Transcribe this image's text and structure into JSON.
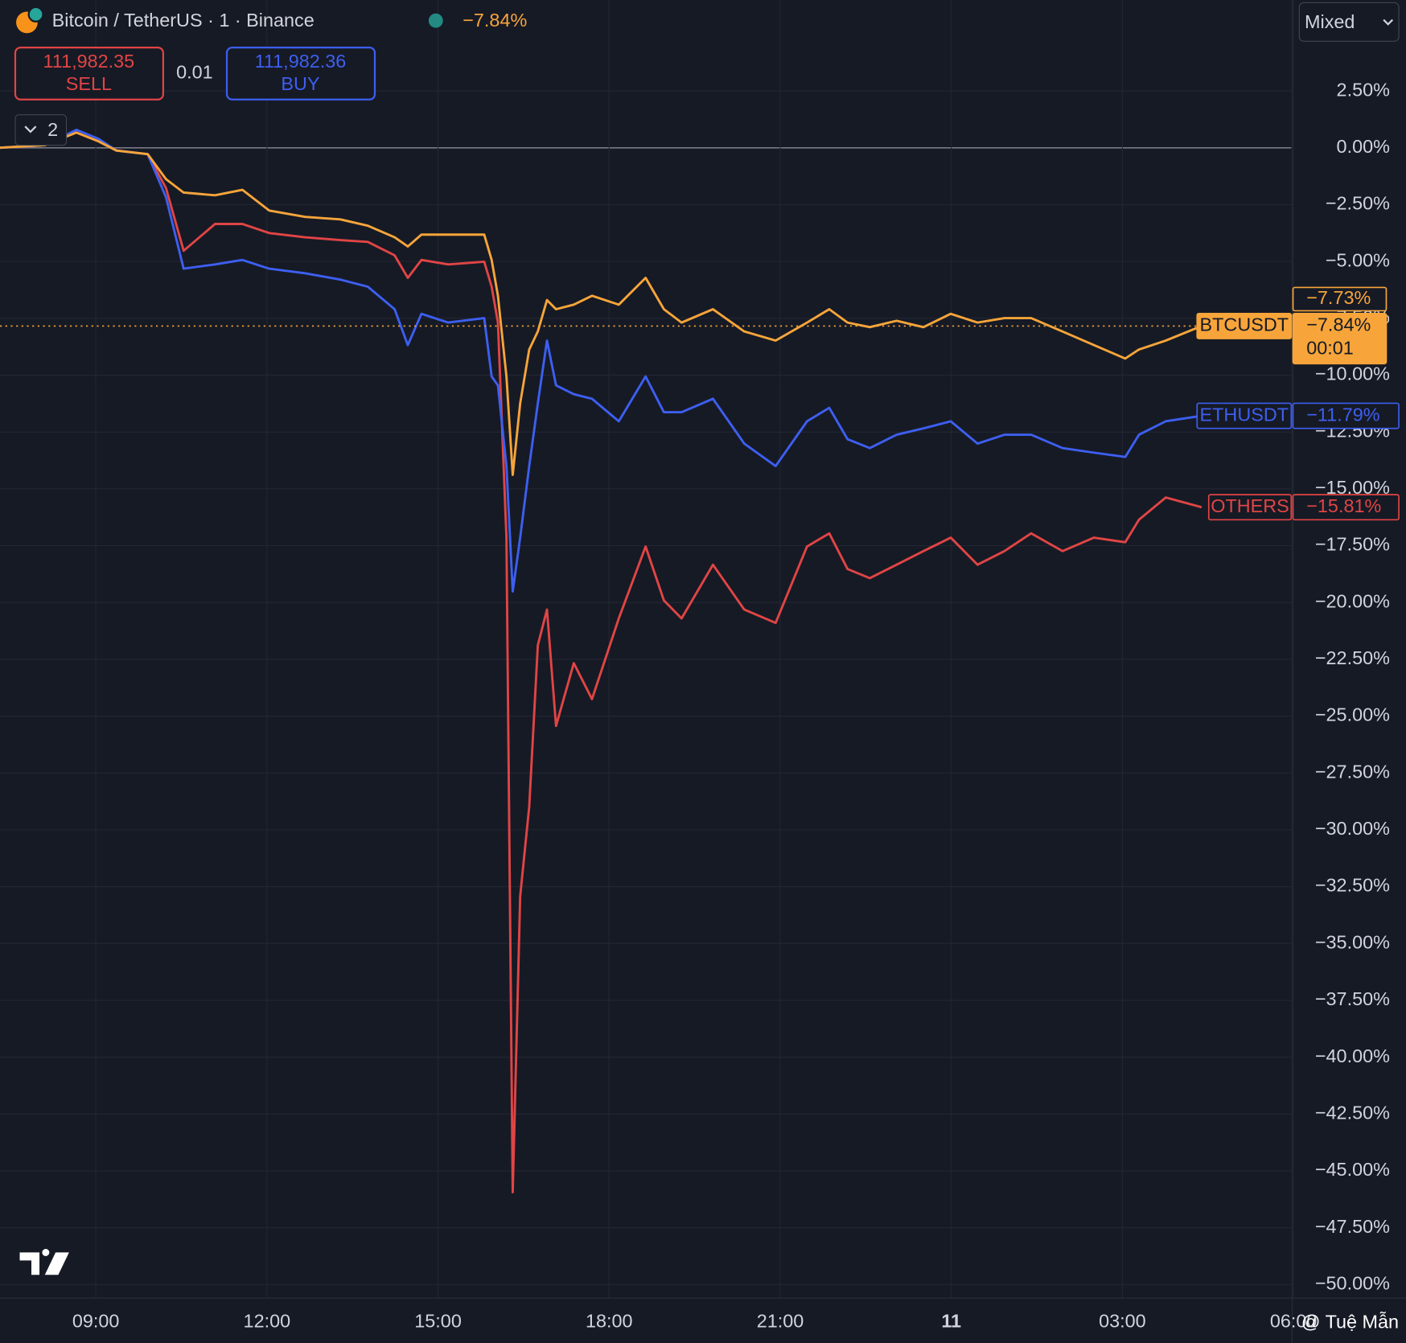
{
  "ui": {
    "title": "Bitcoin / TetherUS · 1 · Binance",
    "change": "−7.84%",
    "sell_price": "111,982.35",
    "sell": "SELL",
    "spread": "0.01",
    "buy_price": "111,982.36",
    "buy": "BUY",
    "indicators": "2",
    "scale_mode": "Mixed",
    "watermark": "@ Tuệ Mẫn"
  },
  "chart_data": {
    "type": "line",
    "x": [
      7.32,
      8.11,
      8.66,
      9.05,
      9.36,
      9.91,
      10.23,
      10.54,
      11.09,
      11.57,
      12.04,
      12.67,
      13.29,
      13.77,
      14.24,
      14.47,
      14.71,
      15.18,
      15.81,
      15.94,
      16.05,
      16.2,
      16.31,
      16.44,
      16.6,
      16.75,
      16.91,
      17.07,
      17.38,
      17.7,
      18.17,
      18.64,
      18.96,
      19.27,
      19.82,
      20.37,
      20.92,
      21.47,
      21.86,
      22.18,
      22.57,
      23.04,
      23.51,
      23.99,
      24.46,
      24.93,
      25.4,
      25.95,
      26.5,
      27.05,
      27.29,
      27.76,
      28.39
    ],
    "series": [
      {
        "name": "BTCUSDT",
        "color": "#f7a53a",
        "last_label": "−7.84%",
        "countdown": "00:01",
        "values": [
          0,
          0.12,
          0.67,
          0.28,
          -0.12,
          -0.28,
          -1.38,
          -1.97,
          -2.09,
          -1.85,
          -2.76,
          -3.04,
          -3.15,
          -3.43,
          -3.94,
          -4.34,
          -3.82,
          -3.82,
          -3.82,
          -4.93,
          -6.51,
          -10.06,
          -14.39,
          -11.24,
          -8.87,
          -8.08,
          -6.7,
          -7.1,
          -6.9,
          -6.51,
          -6.9,
          -5.72,
          -7.1,
          -7.69,
          -7.1,
          -8.08,
          -8.48,
          -7.69,
          -7.1,
          -7.69,
          -7.89,
          -7.61,
          -7.89,
          -7.3,
          -7.69,
          -7.49,
          -7.49,
          -8.08,
          -8.68,
          -9.27,
          -8.87,
          -8.48,
          -7.84
        ]
      },
      {
        "name": "ETHUSDT",
        "color": "#3d5ff0",
        "last_label": "−11.79%",
        "values": [
          0,
          0.12,
          0.79,
          0.39,
          -0.12,
          -0.28,
          -2.17,
          -5.32,
          -5.13,
          -4.93,
          -5.32,
          -5.52,
          -5.8,
          -6.11,
          -7.1,
          -8.68,
          -7.3,
          -7.69,
          -7.49,
          -10.06,
          -10.45,
          -14.0,
          -19.52,
          -17.15,
          -14.0,
          -11.24,
          -8.48,
          -10.45,
          -10.84,
          -11.04,
          -12.03,
          -10.06,
          -11.63,
          -11.63,
          -11.04,
          -13.01,
          -14.0,
          -12.03,
          -11.44,
          -12.82,
          -13.21,
          -12.62,
          -12.34,
          -12.03,
          -13.01,
          -12.62,
          -12.62,
          -13.21,
          -13.41,
          -13.6,
          -12.62,
          -12.03,
          -11.79
        ]
      },
      {
        "name": "OTHERS",
        "color": "#e04545",
        "last_label": "−15.81%",
        "values": [
          0,
          0.12,
          0.67,
          0.28,
          -0.12,
          -0.28,
          -1.77,
          -4.53,
          -3.35,
          -3.35,
          -3.75,
          -3.94,
          -4.06,
          -4.14,
          -4.73,
          -5.72,
          -4.93,
          -5.13,
          -5.01,
          -6.11,
          -7.69,
          -17.15,
          -45.94,
          -32.93,
          -28.98,
          -21.88,
          -20.31,
          -25.43,
          -22.67,
          -24.25,
          -20.7,
          -17.54,
          -19.91,
          -20.7,
          -18.34,
          -20.31,
          -20.9,
          -17.54,
          -16.96,
          -18.53,
          -18.93,
          -18.34,
          -17.74,
          -17.15,
          -18.34,
          -17.74,
          -16.96,
          -17.74,
          -17.15,
          -17.35,
          -16.36,
          -15.38,
          -15.81
        ]
      }
    ],
    "price_marker": {
      "value": -7.73,
      "label": "−7.73%"
    },
    "xlim": [
      7.32,
      29.96
    ],
    "xticks": [
      {
        "value": 9,
        "label": "09:00"
      },
      {
        "value": 12,
        "label": "12:00"
      },
      {
        "value": 15,
        "label": "15:00"
      },
      {
        "value": 18,
        "label": "18:00"
      },
      {
        "value": 21,
        "label": "21:00"
      },
      {
        "value": 24,
        "label": "11"
      },
      {
        "value": 27,
        "label": "03:00"
      },
      {
        "value": 30,
        "label": "06:00"
      }
    ],
    "ylim": [
      -50.6,
      6.5
    ],
    "yticks": [
      {
        "value": 2.5,
        "label": "2.50%"
      },
      {
        "value": 0,
        "label": "0.00%"
      },
      {
        "value": -2.5,
        "label": "−2.50%"
      },
      {
        "value": -5,
        "label": "−5.00%"
      },
      {
        "value": -7.5,
        "label": "−7.50%"
      },
      {
        "value": -10,
        "label": "−10.00%"
      },
      {
        "value": -12.5,
        "label": "−12.50%"
      },
      {
        "value": -15,
        "label": "−15.00%"
      },
      {
        "value": -17.5,
        "label": "−17.50%"
      },
      {
        "value": -20,
        "label": "−20.00%"
      },
      {
        "value": -22.5,
        "label": "−22.50%"
      },
      {
        "value": -25,
        "label": "−25.00%"
      },
      {
        "value": -27.5,
        "label": "−27.50%"
      },
      {
        "value": -30,
        "label": "−30.00%"
      },
      {
        "value": -32.5,
        "label": "−32.50%"
      },
      {
        "value": -35,
        "label": "−35.00%"
      },
      {
        "value": -37.5,
        "label": "−37.50%"
      },
      {
        "value": -40,
        "label": "−40.00%"
      },
      {
        "value": -42.5,
        "label": "−42.50%"
      },
      {
        "value": -45,
        "label": "−45.00%"
      },
      {
        "value": -47.5,
        "label": "−47.50%"
      },
      {
        "value": -50,
        "label": "−50.00%"
      }
    ],
    "grid": true
  }
}
